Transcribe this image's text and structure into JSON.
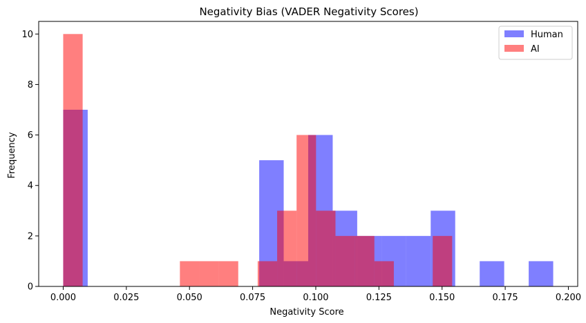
{
  "chart_data": {
    "type": "histogram",
    "title": "Negativity Bias (VADER Negativity Scores)",
    "xlabel": "Negativity Score",
    "ylabel": "Frequency",
    "xlim": [
      -0.0097,
      0.2037
    ],
    "ylim": [
      0,
      10.5
    ],
    "xticks": [
      0.0,
      0.025,
      0.05,
      0.075,
      0.1,
      0.125,
      0.15,
      0.175,
      0.2
    ],
    "xtick_labels": [
      "0.000",
      "0.025",
      "0.050",
      "0.075",
      "0.100",
      "0.125",
      "0.150",
      "0.175",
      "0.200"
    ],
    "yticks": [
      0,
      2,
      4,
      6,
      8,
      10
    ],
    "ytick_labels": [
      "0",
      "2",
      "4",
      "6",
      "8",
      "10"
    ],
    "grid": false,
    "legend_position": "top-right",
    "series": [
      {
        "name": "Human",
        "color": "#0000ff",
        "alpha": 0.5,
        "bins": [
          {
            "x0": 0.0,
            "x1": 0.0097,
            "count": 7
          },
          {
            "x0": 0.0097,
            "x1": 0.0194,
            "count": 0
          },
          {
            "x0": 0.0194,
            "x1": 0.0291,
            "count": 0
          },
          {
            "x0": 0.0291,
            "x1": 0.0388,
            "count": 0
          },
          {
            "x0": 0.0388,
            "x1": 0.0485,
            "count": 0
          },
          {
            "x0": 0.0485,
            "x1": 0.0582,
            "count": 0
          },
          {
            "x0": 0.0582,
            "x1": 0.0679,
            "count": 0
          },
          {
            "x0": 0.0679,
            "x1": 0.0776,
            "count": 0
          },
          {
            "x0": 0.0776,
            "x1": 0.0873,
            "count": 5
          },
          {
            "x0": 0.0873,
            "x1": 0.097,
            "count": 1
          },
          {
            "x0": 0.097,
            "x1": 0.1067,
            "count": 6
          },
          {
            "x0": 0.1067,
            "x1": 0.1164,
            "count": 3
          },
          {
            "x0": 0.1164,
            "x1": 0.1261,
            "count": 2
          },
          {
            "x0": 0.1261,
            "x1": 0.1358,
            "count": 2
          },
          {
            "x0": 0.1358,
            "x1": 0.1455,
            "count": 2
          },
          {
            "x0": 0.1455,
            "x1": 0.1552,
            "count": 3
          },
          {
            "x0": 0.1552,
            "x1": 0.1649,
            "count": 0
          },
          {
            "x0": 0.1649,
            "x1": 0.1746,
            "count": 1
          },
          {
            "x0": 0.1746,
            "x1": 0.1843,
            "count": 0
          },
          {
            "x0": 0.1843,
            "x1": 0.194,
            "count": 1
          }
        ]
      },
      {
        "name": "AI",
        "color": "#ff0000",
        "alpha": 0.5,
        "bins": [
          {
            "x0": 0.0,
            "x1": 0.0077,
            "count": 10
          },
          {
            "x0": 0.0077,
            "x1": 0.0154,
            "count": 0
          },
          {
            "x0": 0.0154,
            "x1": 0.0231,
            "count": 0
          },
          {
            "x0": 0.0231,
            "x1": 0.0308,
            "count": 0
          },
          {
            "x0": 0.0308,
            "x1": 0.0385,
            "count": 0
          },
          {
            "x0": 0.0385,
            "x1": 0.0462,
            "count": 0
          },
          {
            "x0": 0.0462,
            "x1": 0.0539,
            "count": 1
          },
          {
            "x0": 0.0539,
            "x1": 0.0616,
            "count": 1
          },
          {
            "x0": 0.0616,
            "x1": 0.0693,
            "count": 1
          },
          {
            "x0": 0.0693,
            "x1": 0.077,
            "count": 0
          },
          {
            "x0": 0.077,
            "x1": 0.0847,
            "count": 1
          },
          {
            "x0": 0.0847,
            "x1": 0.0924,
            "count": 3
          },
          {
            "x0": 0.0924,
            "x1": 0.1001,
            "count": 6
          },
          {
            "x0": 0.1001,
            "x1": 0.1078,
            "count": 3
          },
          {
            "x0": 0.1078,
            "x1": 0.1155,
            "count": 2
          },
          {
            "x0": 0.1155,
            "x1": 0.1232,
            "count": 2
          },
          {
            "x0": 0.1232,
            "x1": 0.1309,
            "count": 1
          },
          {
            "x0": 0.1309,
            "x1": 0.1386,
            "count": 0
          },
          {
            "x0": 0.1386,
            "x1": 0.1463,
            "count": 0
          },
          {
            "x0": 0.1463,
            "x1": 0.154,
            "count": 2
          }
        ]
      }
    ]
  }
}
